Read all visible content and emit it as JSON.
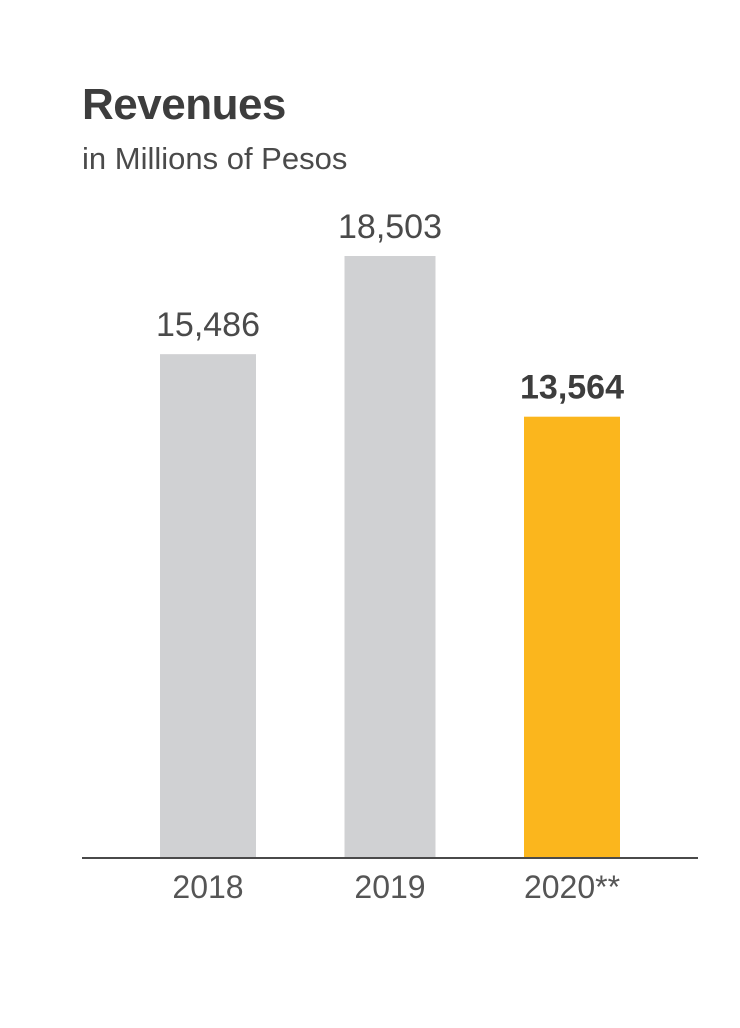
{
  "chart_data": {
    "type": "bar",
    "title": "Revenues",
    "subtitle": "in Millions of Pesos",
    "xlabel": "",
    "ylabel": "",
    "categories": [
      "2018",
      "2019",
      "2020**"
    ],
    "values": [
      15486,
      18503,
      13564
    ],
    "value_labels": [
      "15,486",
      "18,503",
      "13,564"
    ],
    "ylim": [
      0,
      18503
    ],
    "grid": false,
    "highlight_index": 2,
    "colors": {
      "default_bar": "#d0d1d3",
      "highlight_bar": "#fbb61d",
      "axis": "#4a4a4a"
    }
  }
}
